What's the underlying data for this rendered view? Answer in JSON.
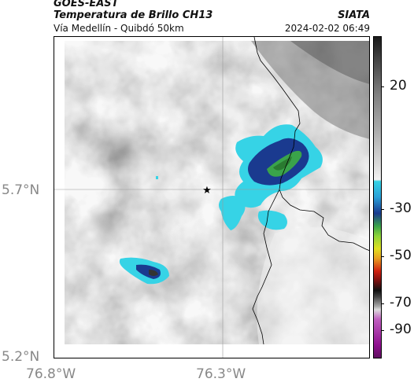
{
  "header": {
    "satellite": "GOES-EAST",
    "product": "Temperatura de Brillo CH13",
    "region": "Vía Medellín - Quibdó 50km",
    "agency": "SIATA",
    "timestamp": "2024-02-02 06:49"
  },
  "map": {
    "lat_labels": [
      "5.7°N",
      "5.2°N"
    ],
    "lon_labels": [
      "76.8°W",
      "76.3°W"
    ],
    "marker_icon": "star-icon"
  },
  "colorbar": {
    "labels": [
      "20",
      "-30",
      "-50",
      "-70",
      "-90"
    ],
    "colors": {
      "cold_blue": "#1a3a8f",
      "cyan": "#36d3e6",
      "green": "#3aa34a",
      "gray_dark": "#333333",
      "gray_light": "#ececec"
    }
  }
}
